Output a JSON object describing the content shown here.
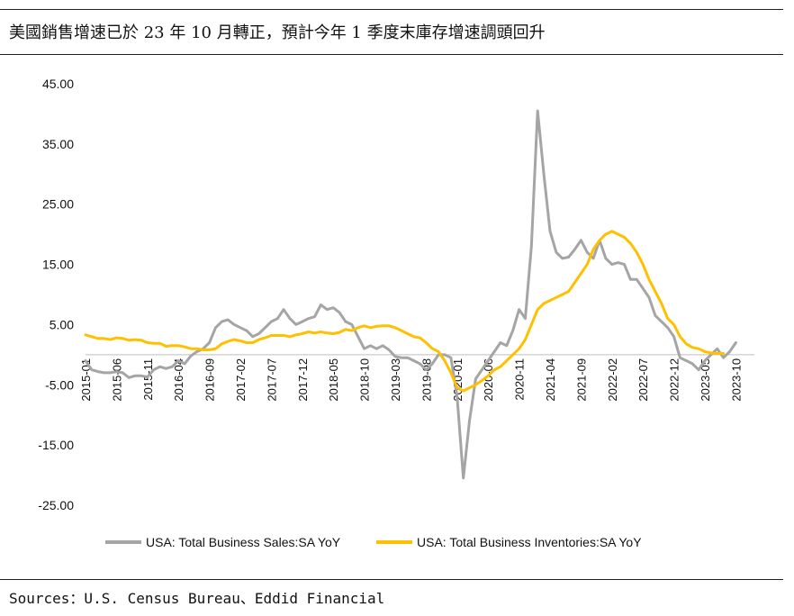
{
  "title": "美國銷售增速已於 23 年 10 月轉正，預計今年 1 季度末庫存增速調頭回升",
  "source": "Sources：U.S. Census Bureau、Eddid Financial",
  "chart_data": {
    "type": "line",
    "ylim": [
      -25,
      45
    ],
    "yticks": [
      45,
      35,
      25,
      15,
      5,
      -5,
      -15,
      -25
    ],
    "ytick_labels": [
      "45.00",
      "35.00",
      "25.00",
      "15.00",
      "5.00",
      "-5.00",
      "-15.00",
      "-25.00"
    ],
    "xtick_labels": [
      "2015-01",
      "2015-06",
      "2015-11",
      "2016-04",
      "2016-09",
      "2017-02",
      "2017-07",
      "2017-12",
      "2018-05",
      "2018-10",
      "2019-03",
      "2019-08",
      "2020-01",
      "2020-06",
      "2020-11",
      "2021-04",
      "2021-09",
      "2022-02",
      "2022-07",
      "2022-12",
      "2023-05",
      "2023-10"
    ],
    "start": "2015-01",
    "end": "2024-01",
    "grid": false,
    "legend_position": "bottom",
    "colors": {
      "sales": "#a5a5a5",
      "inventories": "#ffc000"
    },
    "series": [
      {
        "name": "USA: Total Business Sales:SA YoY",
        "values": [
          -1,
          -2.5,
          -2.8,
          -3,
          -3,
          -2.8,
          -3,
          -3.8,
          -3.5,
          -3.5,
          -3.7,
          -2.5,
          -2,
          -2.3,
          -2,
          -1,
          -1.5,
          -0.2,
          0.5,
          1,
          2,
          4.5,
          5.5,
          5.8,
          5,
          4.5,
          4,
          3,
          3.5,
          4.5,
          5.5,
          6,
          7.5,
          6,
          5,
          5.5,
          6,
          6.3,
          8.3,
          7.5,
          7.8,
          7,
          5.5,
          5,
          3,
          1,
          1.5,
          1,
          1.5,
          0.8,
          -0.3,
          -0.5,
          -0.5,
          -1,
          -1.5,
          -2.5,
          -1.5,
          0,
          0,
          -0.5,
          -7,
          -20.5,
          -11,
          -4,
          -2.5,
          -1,
          0.5,
          2,
          1.5,
          4,
          7.5,
          6,
          18,
          40.5,
          30,
          20.5,
          17,
          16,
          16.2,
          17.5,
          19,
          17,
          16,
          19,
          16,
          15,
          15.3,
          15,
          12.5,
          12.5,
          11,
          9.5,
          6.5,
          5.5,
          4.5,
          3,
          -0.5,
          -1,
          -1.5,
          -2.5,
          -1,
          0,
          1,
          -0.5,
          0.5,
          2
        ]
      },
      {
        "name": "USA: Total Business Inventories:SA YoY",
        "values": [
          3.3,
          3,
          2.7,
          2.7,
          2.5,
          2.8,
          2.7,
          2.4,
          2.5,
          2.4,
          2,
          1.9,
          1.9,
          1.4,
          1.5,
          1.5,
          1.3,
          1,
          1,
          0.8,
          0.8,
          1,
          1.8,
          2.2,
          2.5,
          2.3,
          2,
          2,
          2.5,
          2.8,
          3.2,
          3.2,
          3.2,
          3,
          3.3,
          3.5,
          3.8,
          3.6,
          3.8,
          3.6,
          3.5,
          3.7,
          4.2,
          4,
          4.5,
          4.8,
          4.5,
          4.7,
          4.8,
          4.8,
          4.5,
          4,
          3.5,
          3,
          2.8,
          2,
          1,
          0.5,
          -1,
          -3,
          -5.5,
          -6,
          -5.5,
          -5,
          -4.3,
          -3.5,
          -2.5,
          -2,
          -1,
          0,
          1,
          2.5,
          5,
          7.5,
          8.5,
          9,
          9.5,
          10,
          10.5,
          12,
          13.5,
          15,
          17.5,
          19,
          20,
          20.5,
          20,
          19.5,
          18.5,
          17,
          15,
          12.5,
          10.5,
          8.5,
          6,
          5,
          3,
          1.8,
          1.2,
          1,
          0.5,
          0.3,
          0.2,
          0.2
        ]
      }
    ]
  }
}
